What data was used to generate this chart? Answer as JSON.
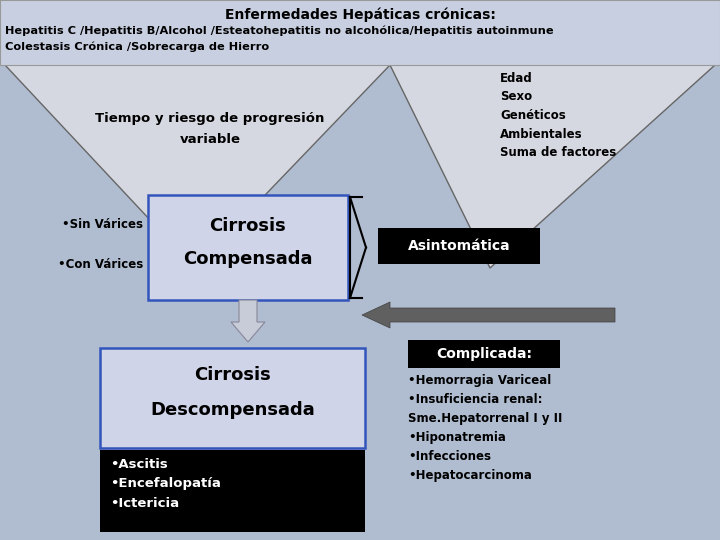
{
  "bg_color": "#b0bcd0",
  "title_box_color": "#c8cfe0",
  "title_text1": "Enfermedades Hepáticas crónicas:",
  "title_text2": "Hepatitis C /Hepatitis B/Alcohol /Esteatohepatitis no alcohólica/Hepatitis autoinmune",
  "title_text3": "Colestasis Crónica /Sobrecarga de Hierro",
  "funnel_color": "#d5d8e0",
  "funnel_text1": "Tiempo y riesgo de progresión",
  "funnel_text2": "variable",
  "comp_box_color": "#d0d4e8",
  "comp_box_edge": "#3355bb",
  "comp_text1": "Cirrosis",
  "comp_text2": "Compensada",
  "bullet_sin": "•Sin Várices",
  "bullet_con": "•Con Várices",
  "asint_box_color": "#000000",
  "asint_text": "Asintomática",
  "edad_text": "Edad\nSexo\nGenéticos\nAmbientales\nSuma de factores",
  "decomp_box_color": "#d0d4e8",
  "decomp_box_edge": "#3355bb",
  "decomp_text1": "Cirrosis",
  "decomp_text2": "Descompensada",
  "black_box_color": "#000000",
  "black_box_items": "•Ascitis\n•Encefalopatía\n•Ictericia",
  "complicada_box_color": "#000000",
  "complicada_text": "Complicada:",
  "complicada_items": "•Hemorragia Variceal\n•Insuficiencia renal:\nSme.Hepatorrenal I y II\n•Hiponatremia\n•Infecciones\n•Hepatocarcinoma"
}
